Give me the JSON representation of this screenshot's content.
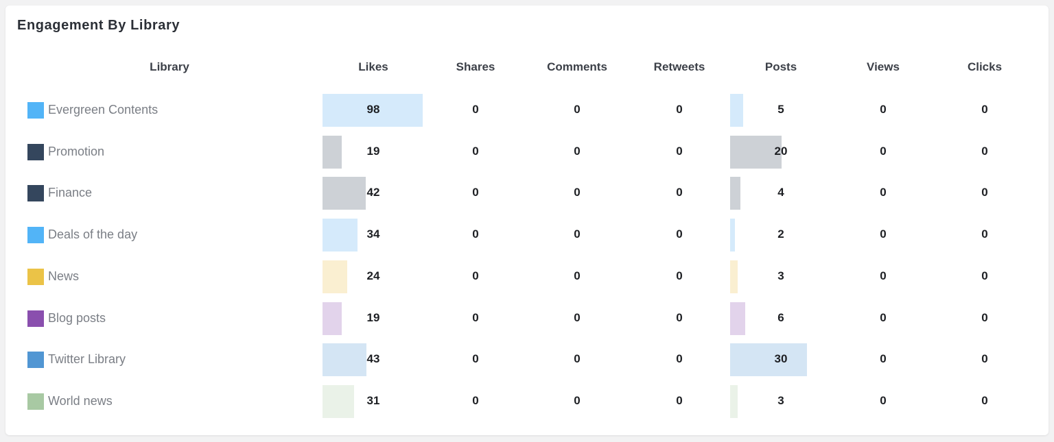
{
  "title": "Engagement By Library",
  "columns": [
    "Library",
    "Likes",
    "Shares",
    "Comments",
    "Retweets",
    "Posts",
    "Views",
    "Clicks"
  ],
  "rows": [
    {
      "library": "Evergreen Contents",
      "swatch": "#52b4f7",
      "bar": "#d5eafb",
      "likes": "98",
      "shares": "0",
      "comments": "0",
      "retweets": "0",
      "posts": "5",
      "views": "0",
      "clicks": "0"
    },
    {
      "library": "Promotion",
      "swatch": "#34465d",
      "bar": "#cdd1d6",
      "likes": "19",
      "shares": "0",
      "comments": "0",
      "retweets": "0",
      "posts": "20",
      "views": "0",
      "clicks": "0"
    },
    {
      "library": "Finance",
      "swatch": "#34465d",
      "bar": "#cdd1d6",
      "likes": "42",
      "shares": "0",
      "comments": "0",
      "retweets": "0",
      "posts": "4",
      "views": "0",
      "clicks": "0"
    },
    {
      "library": "Deals of the day",
      "swatch": "#52b4f7",
      "bar": "#d5eafb",
      "likes": "34",
      "shares": "0",
      "comments": "0",
      "retweets": "0",
      "posts": "2",
      "views": "0",
      "clicks": "0"
    },
    {
      "library": "News",
      "swatch": "#ebc347",
      "bar": "#faefd1",
      "likes": "24",
      "shares": "0",
      "comments": "0",
      "retweets": "0",
      "posts": "3",
      "views": "0",
      "clicks": "0"
    },
    {
      "library": "Blog posts",
      "swatch": "#8a4fae",
      "bar": "#e2d3eb",
      "likes": "19",
      "shares": "0",
      "comments": "0",
      "retweets": "0",
      "posts": "6",
      "views": "0",
      "clicks": "0"
    },
    {
      "library": "Twitter Library",
      "swatch": "#5196d3",
      "bar": "#d4e5f4",
      "likes": "43",
      "shares": "0",
      "comments": "0",
      "retweets": "0",
      "posts": "30",
      "views": "0",
      "clicks": "0"
    },
    {
      "library": "World news",
      "swatch": "#a8c9a3",
      "bar": "#eaf2e8",
      "likes": "31",
      "shares": "0",
      "comments": "0",
      "retweets": "0",
      "posts": "3",
      "views": "0",
      "clicks": "0"
    }
  ]
}
